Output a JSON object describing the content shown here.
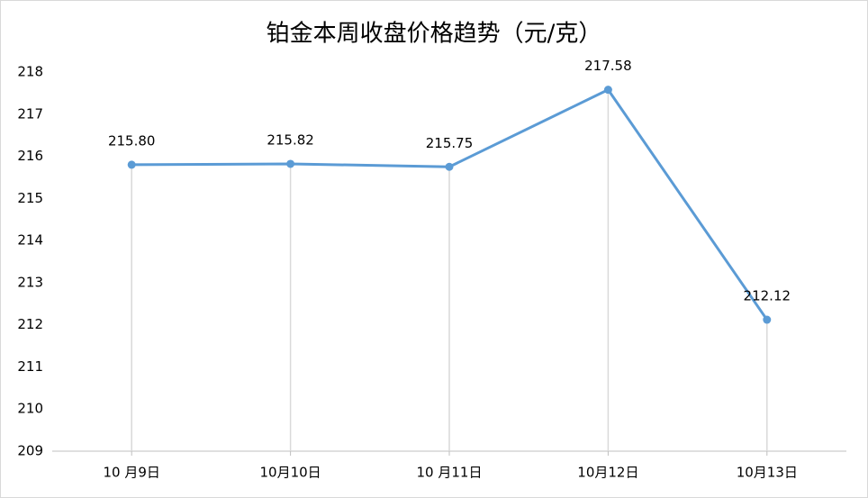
{
  "chart_data": {
    "type": "line",
    "title": "铂金本周收盘价格趋势（元/克）",
    "categories": [
      "10 月9日",
      "10月10日",
      "10 月11日",
      "10月12日",
      "10月13日"
    ],
    "values": [
      215.8,
      215.82,
      215.75,
      217.58,
      212.12
    ],
    "value_labels": [
      "215.80",
      "215.82",
      "215.75",
      "217.58",
      "212.12"
    ],
    "color": "#5b9bd5",
    "ylim": [
      209,
      218
    ],
    "yticks": [
      209,
      210,
      211,
      212,
      213,
      214,
      215,
      216,
      217,
      218
    ],
    "drop_lines": true
  }
}
